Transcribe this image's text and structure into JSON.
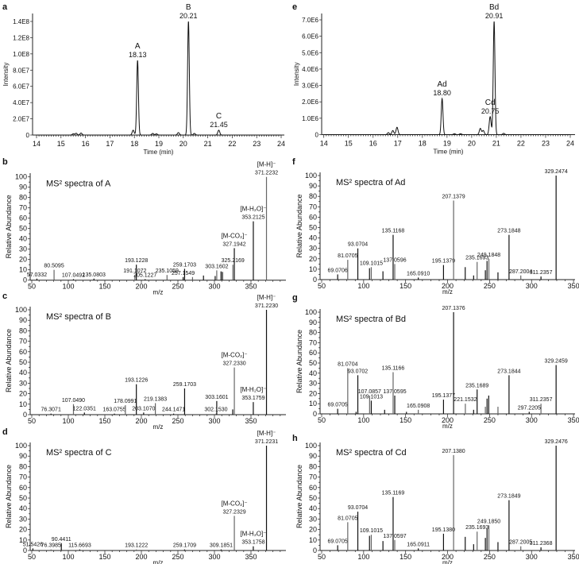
{
  "chart_data": [
    {
      "panel": "a",
      "type": "line",
      "xlabel": "Time (min)",
      "ylabel": "Intensity",
      "xlim": [
        14,
        24
      ],
      "ylim": [
        0,
        150000000.0
      ],
      "xticks": [
        "14",
        "15",
        "16",
        "17",
        "18",
        "19",
        "20",
        "21",
        "22",
        "23",
        "24"
      ],
      "yticks": [
        {
          "v": 0,
          "t": "0"
        },
        {
          "v": 20000000.0,
          "t": "2.0E7"
        },
        {
          "v": 40000000.0,
          "t": "4.0E7"
        },
        {
          "v": 60000000.0,
          "t": "6.0E7"
        },
        {
          "v": 80000000.0,
          "t": "8.0E7"
        },
        {
          "v": 100000000.0,
          "t": "1.0E8"
        },
        {
          "v": 120000000.0,
          "t": "1.2E8"
        },
        {
          "v": 140000000.0,
          "t": "1.4E8"
        }
      ],
      "peaks": [
        {
          "rt": 15.5,
          "h": 1500000.0
        },
        {
          "rt": 15.62,
          "h": 2200000.0
        },
        {
          "rt": 15.82,
          "h": 2500000.0
        },
        {
          "rt": 17.95,
          "h": 6000000.0
        },
        {
          "rt": 18.13,
          "h": 92000000.0,
          "name": "A",
          "rt_label": "18.13"
        },
        {
          "rt": 18.75,
          "h": 2000000.0
        },
        {
          "rt": 18.9,
          "h": 1500000.0
        },
        {
          "rt": 19.8,
          "h": 3000000.0
        },
        {
          "rt": 20.21,
          "h": 140000000.0,
          "name": "B",
          "rt_label": "20.21"
        },
        {
          "rt": 20.45,
          "h": 2000000.0
        },
        {
          "rt": 21.45,
          "h": 6000000.0,
          "name": "C",
          "rt_label": "21.45"
        }
      ]
    },
    {
      "panel": "b",
      "type": "bar",
      "title": "MS² spectra of A",
      "xlabel": "m/z",
      "ylabel": "Relative Abundance",
      "xlim": [
        50,
        400
      ],
      "ylim": [
        0,
        100
      ],
      "xticks": [
        "50",
        "100",
        "150",
        "200",
        "250",
        "300",
        "350"
      ],
      "peaks": [
        {
          "mz": 57.0332,
          "ra": 1.5,
          "label": "57.0332"
        },
        {
          "mz": 80.5095,
          "ra": 10,
          "label": "80.5095"
        },
        {
          "mz": 107.0492,
          "ra": 1,
          "label": "107.0492"
        },
        {
          "mz": 135.0803,
          "ra": 1.5,
          "label": "135.0803"
        },
        {
          "mz": 191.1072,
          "ra": 5,
          "label": "191.1072"
        },
        {
          "mz": 193.1228,
          "ra": 15,
          "label": "193.1228"
        },
        {
          "mz": 205.1227,
          "ra": 1,
          "label": "205.1227"
        },
        {
          "mz": 235.1059,
          "ra": 5,
          "label": "235.1059"
        },
        {
          "mz": 257.1549,
          "ra": 3,
          "label": "257.1549"
        },
        {
          "mz": 259.1703,
          "ra": 11,
          "label": "259.1703"
        },
        {
          "mz": 270,
          "ra": 3
        },
        {
          "mz": 285,
          "ra": 4.5
        },
        {
          "mz": 301,
          "ra": 4
        },
        {
          "mz": 303.1602,
          "ra": 9.5,
          "label": "303.1602"
        },
        {
          "mz": 309,
          "ra": 8.5
        },
        {
          "mz": 311,
          "ra": 8
        },
        {
          "mz": 325.2169,
          "ra": 15,
          "label": "325.2169"
        },
        {
          "mz": 327.1942,
          "ra": 31,
          "label": "327.1942",
          "ion": "[M-CO₂]⁻"
        },
        {
          "mz": 353.2125,
          "ra": 57,
          "label": "353.2125",
          "ion": "[M-H₂O]⁻"
        },
        {
          "mz": 371.2232,
          "ra": 100,
          "label": "371.2232",
          "ion": "[M-H]⁻"
        }
      ]
    },
    {
      "panel": "c",
      "type": "bar",
      "title": "MS² spectra of B",
      "xlabel": "m/z",
      "ylabel": "Relative Abundance",
      "xlim": [
        50,
        400
      ],
      "ylim": [
        0,
        100
      ],
      "xticks": [
        "50",
        "100",
        "150",
        "200",
        "250",
        "300",
        "350"
      ],
      "peaks": [
        {
          "mz": 76.3071,
          "ra": 1,
          "label": "76.3071"
        },
        {
          "mz": 107.049,
          "ra": 10,
          "label": "107.0490"
        },
        {
          "mz": 122.0351,
          "ra": 2,
          "label": "122.0351"
        },
        {
          "mz": 163.0755,
          "ra": 1,
          "label": "163.0755"
        },
        {
          "mz": 178.0991,
          "ra": 9,
          "label": "178.0991"
        },
        {
          "mz": 193.1226,
          "ra": 29,
          "label": "193.1226"
        },
        {
          "mz": 203.107,
          "ra": 2,
          "label": "203.1070"
        },
        {
          "mz": 219.1383,
          "ra": 11,
          "label": "219.1383"
        },
        {
          "mz": 244.1471,
          "ra": 1,
          "label": "244.1471"
        },
        {
          "mz": 259.1703,
          "ra": 25,
          "label": "259.1703"
        },
        {
          "mz": 302.153,
          "ra": 1,
          "label": "302.1530"
        },
        {
          "mz": 303.1601,
          "ra": 13,
          "label": "303.1601"
        },
        {
          "mz": 325,
          "ra": 5
        },
        {
          "mz": 327.233,
          "ra": 45,
          "label": "327.2330",
          "ion": "[M-CO₂]⁻"
        },
        {
          "mz": 353.1759,
          "ra": 12,
          "label": "353.1759",
          "ion": "[M-H₂O]⁻"
        },
        {
          "mz": 371.223,
          "ra": 100,
          "label": "371.2230",
          "ion": "[M-H]⁻"
        }
      ]
    },
    {
      "panel": "d",
      "type": "bar",
      "title": "MS² spectra of C",
      "xlabel": "m/z",
      "ylabel": "Relative Abundance",
      "xlim": [
        50,
        400
      ],
      "ylim": [
        0,
        100
      ],
      "xticks": [
        "50",
        "100",
        "150",
        "200",
        "250",
        "300",
        "350"
      ],
      "peaks": [
        {
          "mz": 51.5426,
          "ra": 2,
          "label": "51.5426"
        },
        {
          "mz": 76.3985,
          "ra": 1,
          "label": "76.3985"
        },
        {
          "mz": 90.4411,
          "ra": 7,
          "label": "90.4411"
        },
        {
          "mz": 115.6693,
          "ra": 1,
          "label": "115.6693"
        },
        {
          "mz": 193.1222,
          "ra": 1,
          "label": "193.1222"
        },
        {
          "mz": 259.1709,
          "ra": 1,
          "label": "259.1709"
        },
        {
          "mz": 309.1851,
          "ra": 1,
          "label": "309.1851"
        },
        {
          "mz": 327.2329,
          "ra": 33,
          "label": "327.2329",
          "ion": "[M-CO₂]⁻"
        },
        {
          "mz": 353.1758,
          "ra": 4,
          "label": "353.1758",
          "ion": "[M-H₂O]⁻"
        },
        {
          "mz": 371.2231,
          "ra": 100,
          "label": "371.2231",
          "ion": "[M-H]⁻"
        }
      ]
    },
    {
      "panel": "e",
      "type": "line",
      "xlabel": "Time (min)",
      "ylabel": "Intensity",
      "xlim": [
        14,
        24
      ],
      "ylim": [
        0,
        7500000.0
      ],
      "xticks": [
        "14",
        "15",
        "16",
        "17",
        "18",
        "19",
        "20",
        "21",
        "22",
        "23",
        "24"
      ],
      "yticks": [
        {
          "v": 0,
          "t": "0"
        },
        {
          "v": 1000000.0,
          "t": "1.0E6"
        },
        {
          "v": 2000000.0,
          "t": "2.0E6"
        },
        {
          "v": 3000000.0,
          "t": "3.0E6"
        },
        {
          "v": 4000000.0,
          "t": "4.0E6"
        },
        {
          "v": 5000000.0,
          "t": "5.0E6"
        },
        {
          "v": 6000000.0,
          "t": "6.0E6"
        },
        {
          "v": 7000000.0,
          "t": "7.0E6"
        }
      ],
      "peaks": [
        {
          "rt": 16.62,
          "h": 120000.0
        },
        {
          "rt": 16.8,
          "h": 250000.0
        },
        {
          "rt": 16.97,
          "h": 450000.0
        },
        {
          "rt": 18.8,
          "h": 2200000.0,
          "name": "Ad",
          "rt_label": "18.80"
        },
        {
          "rt": 19.3,
          "h": 60000.0
        },
        {
          "rt": 19.55,
          "h": 60000.0
        },
        {
          "rt": 20.35,
          "h": 380000.0
        },
        {
          "rt": 20.47,
          "h": 250000.0
        },
        {
          "rt": 20.75,
          "h": 1100000.0,
          "name": "Cd",
          "rt_label": "20.75"
        },
        {
          "rt": 20.91,
          "h": 6900000.0,
          "name": "Bd",
          "rt_label": "20.91"
        },
        {
          "rt": 21.3,
          "h": 80000.0
        }
      ]
    },
    {
      "panel": "f",
      "type": "bar",
      "title": "MS² spectra of Ad",
      "xlabel": "m/z",
      "ylabel": "Relative Abundance",
      "xlim": [
        50,
        352
      ],
      "ylim": [
        0,
        100
      ],
      "xticks": [
        "50",
        "100",
        "150",
        "200",
        "250",
        "300",
        "350"
      ],
      "peaks": [
        {
          "mz": 69.0706,
          "ra": 5,
          "label": "69.0706"
        },
        {
          "mz": 81.0705,
          "ra": 19,
          "label": "81.0705"
        },
        {
          "mz": 93.0704,
          "ra": 30,
          "label": "93.0704"
        },
        {
          "mz": 107,
          "ra": 11
        },
        {
          "mz": 109.1015,
          "ra": 12,
          "label": "109.1015"
        },
        {
          "mz": 123,
          "ra": 8
        },
        {
          "mz": 135.1168,
          "ra": 43,
          "label": "135.1168"
        },
        {
          "mz": 137.0596,
          "ra": 15,
          "label": "137.0596"
        },
        {
          "mz": 165.091,
          "ra": 2,
          "label": "165.0910"
        },
        {
          "mz": 195.1379,
          "ra": 14,
          "label": "195.1379"
        },
        {
          "mz": 207.1379,
          "ra": 76,
          "label": "207.1379"
        },
        {
          "mz": 221,
          "ra": 12
        },
        {
          "mz": 231,
          "ra": 4
        },
        {
          "mz": 235.1693,
          "ra": 17,
          "label": "235.1693"
        },
        {
          "mz": 245,
          "ra": 9
        },
        {
          "mz": 247,
          "ra": 18
        },
        {
          "mz": 249.1848,
          "ra": 20,
          "label": "249.1848"
        },
        {
          "mz": 260,
          "ra": 7
        },
        {
          "mz": 273.1848,
          "ra": 43,
          "label": "273.1848"
        },
        {
          "mz": 287.2004,
          "ra": 4,
          "label": "287.2004"
        },
        {
          "mz": 311.2357,
          "ra": 3,
          "label": "311.2357"
        },
        {
          "mz": 329.2474,
          "ra": 100,
          "label": "329.2474"
        }
      ]
    },
    {
      "panel": "g",
      "type": "bar",
      "title": "MS² spectra of Bd",
      "xlabel": "m/z",
      "ylabel": "Relative Abundance",
      "xlim": [
        50,
        352
      ],
      "ylim": [
        0,
        100
      ],
      "xticks": [
        "50",
        "100",
        "150",
        "200",
        "250",
        "300",
        "350"
      ],
      "peaks": [
        {
          "mz": 69.0705,
          "ra": 5,
          "label": "69.0705"
        },
        {
          "mz": 81.0704,
          "ra": 45,
          "label": "81.0704"
        },
        {
          "mz": 91,
          "ra": 2
        },
        {
          "mz": 93.0702,
          "ra": 38,
          "label": "93.0702"
        },
        {
          "mz": 107.0857,
          "ra": 18,
          "label": "107.0857"
        },
        {
          "mz": 109.1013,
          "ra": 13,
          "label": "109.1013"
        },
        {
          "mz": 125,
          "ra": 4
        },
        {
          "mz": 135.1166,
          "ra": 41,
          "label": "135.1166"
        },
        {
          "mz": 137.0595,
          "ra": 18,
          "label": "137.0595"
        },
        {
          "mz": 151,
          "ra": 2
        },
        {
          "mz": 165.0908,
          "ra": 4,
          "label": "165.0908"
        },
        {
          "mz": 195.1377,
          "ra": 14,
          "label": "195.1377"
        },
        {
          "mz": 207.1376,
          "ra": 100,
          "label": "207.1376"
        },
        {
          "mz": 221.1532,
          "ra": 10,
          "label": "221.1532"
        },
        {
          "mz": 231,
          "ra": 4
        },
        {
          "mz": 235.1689,
          "ra": 24,
          "label": "235.1689"
        },
        {
          "mz": 245,
          "ra": 7
        },
        {
          "mz": 247,
          "ra": 15
        },
        {
          "mz": 249,
          "ra": 18
        },
        {
          "mz": 260,
          "ra": 7
        },
        {
          "mz": 273.1844,
          "ra": 38,
          "label": "273.1844"
        },
        {
          "mz": 297.2205,
          "ra": 2,
          "label": "297.2205"
        },
        {
          "mz": 311.2357,
          "ra": 10,
          "label": "311.2357"
        },
        {
          "mz": 329.2459,
          "ra": 48,
          "label": "329.2459"
        }
      ]
    },
    {
      "panel": "h",
      "type": "bar",
      "title": "MS² spectra of Cd",
      "xlabel": "m/z",
      "ylabel": "Relative Abundance",
      "xlim": [
        50,
        352
      ],
      "ylim": [
        0,
        100
      ],
      "xticks": [
        "50",
        "100",
        "150",
        "200",
        "250",
        "300",
        "350"
      ],
      "peaks": [
        {
          "mz": 69.0705,
          "ra": 5,
          "label": "69.0705"
        },
        {
          "mz": 81.0705,
          "ra": 27,
          "label": "81.0705"
        },
        {
          "mz": 93.0704,
          "ra": 37,
          "label": "93.0704"
        },
        {
          "mz": 107,
          "ra": 14
        },
        {
          "mz": 109.1015,
          "ra": 15,
          "label": "109.1015"
        },
        {
          "mz": 123,
          "ra": 9
        },
        {
          "mz": 135.1169,
          "ra": 51,
          "label": "135.1169"
        },
        {
          "mz": 137.0597,
          "ra": 10,
          "label": "137.0597"
        },
        {
          "mz": 165.0911,
          "ra": 2,
          "label": "165.0911"
        },
        {
          "mz": 195.138,
          "ra": 16,
          "label": "195.1380"
        },
        {
          "mz": 207.138,
          "ra": 91,
          "label": "207.1380"
        },
        {
          "mz": 221,
          "ra": 13
        },
        {
          "mz": 231,
          "ra": 6
        },
        {
          "mz": 235.1693,
          "ra": 18,
          "label": "235.1693"
        },
        {
          "mz": 245,
          "ra": 12
        },
        {
          "mz": 247,
          "ra": 21
        },
        {
          "mz": 249.185,
          "ra": 24,
          "label": "249.1850"
        },
        {
          "mz": 260,
          "ra": 8
        },
        {
          "mz": 273.1849,
          "ra": 48,
          "label": "273.1849"
        },
        {
          "mz": 287.2005,
          "ra": 4,
          "label": "287.2005"
        },
        {
          "mz": 311.2368,
          "ra": 3,
          "label": "311.2368"
        },
        {
          "mz": 329.2476,
          "ra": 100,
          "label": "329.2476"
        }
      ]
    }
  ]
}
